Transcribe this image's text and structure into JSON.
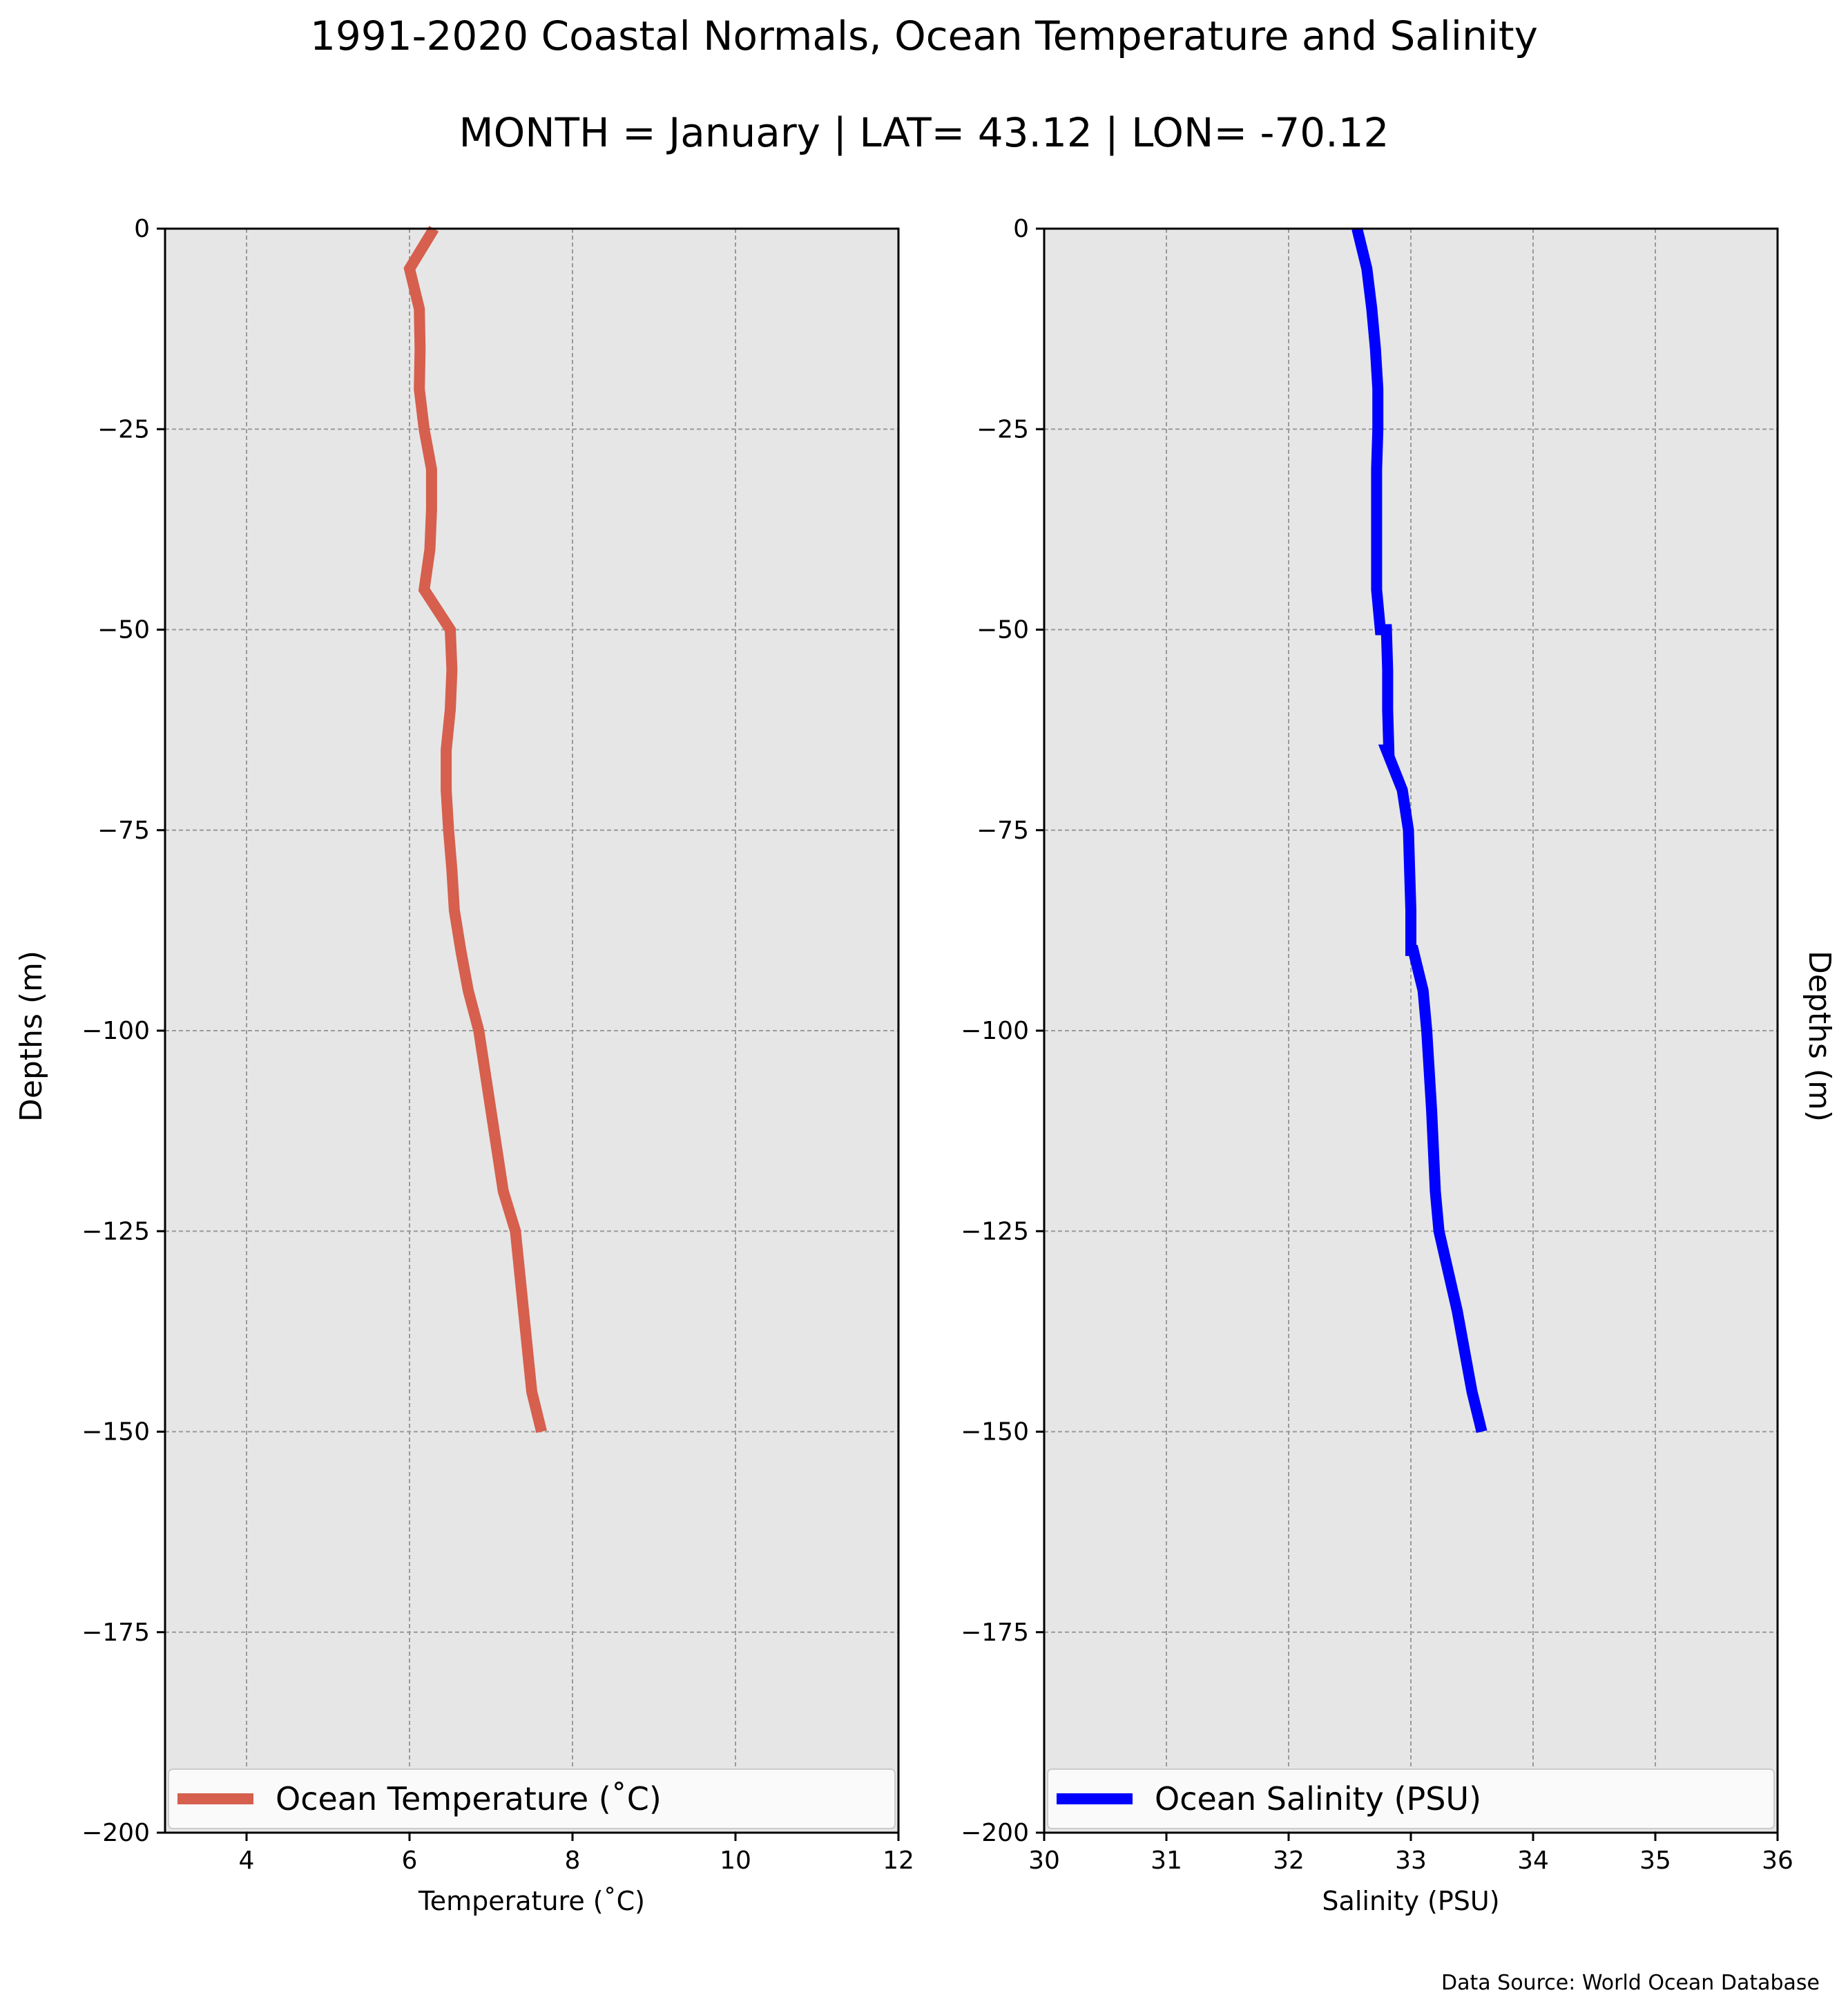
{
  "figure": {
    "title": "1991-2020 Coastal Normals, Ocean Temperature and Salinity",
    "subtitle": "MONTH = January | LAT= 43.12 | LON= -70.12",
    "source": "Data Source: World Ocean Database"
  },
  "chart_data": [
    {
      "type": "line",
      "xlabel": "Temperature ($^\\circ$C)",
      "xlabel_display": "Temperature (˚C)",
      "ylabel": "Depths (m)",
      "xlim": [
        3,
        12
      ],
      "ylim": [
        -200,
        0
      ],
      "xticks": [
        4,
        6,
        8,
        10,
        12
      ],
      "yticks": [
        0,
        -25,
        -50,
        -75,
        -100,
        -125,
        -150,
        -175,
        -200
      ],
      "ytick_labels": [
        "0",
        "−25",
        "−50",
        "−75",
        "−100",
        "−125",
        "−150",
        "−175",
        "−200"
      ],
      "grid": true,
      "legend_position": "lower",
      "series": [
        {
          "name": "Ocean Temperature (˚C)",
          "color": "#d65f4e",
          "x": [
            6.3,
            6.0,
            6.12,
            6.13,
            6.12,
            6.18,
            6.27,
            6.27,
            6.25,
            6.18,
            6.5,
            6.52,
            6.5,
            6.45,
            6.45,
            6.48,
            6.52,
            6.55,
            6.63,
            6.72,
            6.85,
            7.0,
            7.15,
            7.3,
            7.4,
            7.5,
            7.62
          ],
          "y": [
            0,
            -5,
            -10,
            -15,
            -20,
            -25,
            -30,
            -35,
            -40,
            -45,
            -50,
            -55,
            -60,
            -65,
            -70,
            -75,
            -80,
            -85,
            -90,
            -95,
            -100,
            -110,
            -120,
            -125,
            -135,
            -145,
            -150
          ]
        }
      ]
    },
    {
      "type": "line",
      "xlabel": "Salinity (PSU)",
      "ylabel": "Depths (m)",
      "xlim": [
        30,
        36
      ],
      "ylim": [
        -200,
        0
      ],
      "xticks": [
        30,
        31,
        32,
        33,
        34,
        35,
        36
      ],
      "yticks": [
        0,
        -25,
        -50,
        -75,
        -100,
        -125,
        -150,
        -175,
        -200
      ],
      "ytick_labels": [
        "0",
        "−25",
        "−50",
        "−75",
        "−100",
        "−125",
        "−150",
        "−175",
        "−200"
      ],
      "grid": true,
      "legend_position": "lower",
      "series": [
        {
          "name": "Ocean Salinity (PSU)",
          "color": "#0000ff",
          "x": [
            32.56,
            32.64,
            32.68,
            32.71,
            32.73,
            32.73,
            32.72,
            32.72,
            32.72,
            32.72,
            32.75,
            32.76,
            32.8,
            32.81,
            32.81,
            32.82,
            32.8,
            32.93,
            32.98,
            32.99,
            33.0,
            33.0,
            33.02,
            33.1,
            33.13,
            33.17,
            33.2,
            33.23,
            33.38,
            33.5,
            33.58
          ],
          "y": [
            0,
            -5,
            -10,
            -15,
            -20,
            -25,
            -30,
            -35,
            -40,
            -45,
            -50,
            -50,
            -50,
            -55,
            -60,
            -65,
            -65,
            -70,
            -75,
            -80,
            -85,
            -90,
            -90,
            -95,
            -100,
            -110,
            -120,
            -125,
            -135,
            -145,
            -150
          ]
        }
      ]
    }
  ]
}
